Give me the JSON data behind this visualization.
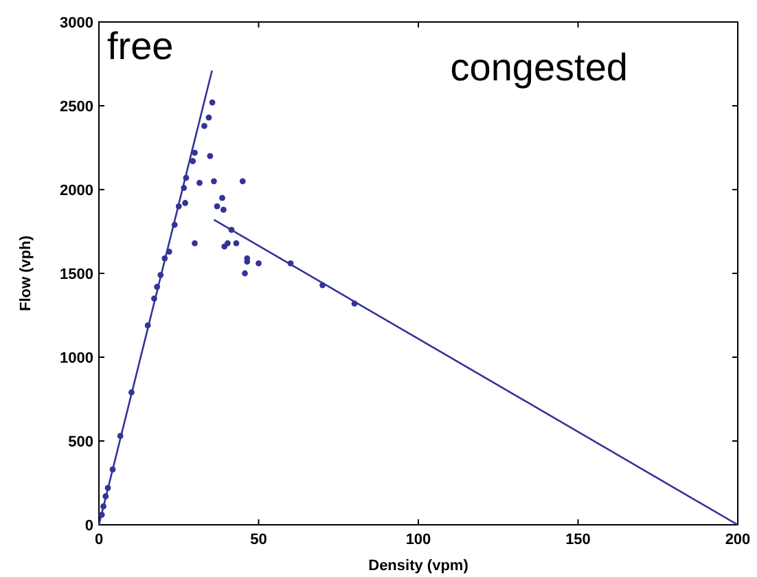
{
  "chart_data": {
    "type": "scatter",
    "xlabel": "Density (vpm)",
    "ylabel": "Flow (vph)",
    "xlim": [
      0,
      200
    ],
    "ylim": [
      0,
      3000
    ],
    "xticks": [
      0,
      50,
      100,
      150,
      200
    ],
    "yticks": [
      0,
      500,
      1000,
      1500,
      2000,
      2500,
      3000
    ],
    "grid": false,
    "marker": "circle",
    "annotations": [
      "free",
      "congested"
    ],
    "series": [
      {
        "color": "#333399",
        "x": [
          35.5,
          34.4,
          33,
          34.8,
          30,
          29.4,
          36,
          31.5,
          45,
          27.3,
          26.6,
          27,
          25,
          37,
          38.6,
          39,
          30,
          23.7,
          22,
          20.6,
          19.3,
          18.2,
          17.3,
          15.3,
          10.2,
          6.7,
          4.3,
          2.8,
          2.1,
          1.4,
          0.9,
          41.5,
          39.3,
          40.3,
          43,
          46.4,
          46.4,
          45.7,
          50,
          60,
          70,
          80
        ],
        "values": [
          2520,
          2430,
          2380,
          2200,
          2220,
          2170,
          2050,
          2040,
          2050,
          2070,
          2010,
          1920,
          1900,
          1900,
          1950,
          1880,
          1680,
          1790,
          1630,
          1590,
          1490,
          1420,
          1350,
          1190,
          790,
          530,
          330,
          220,
          170,
          110,
          60,
          1760,
          1660,
          1680,
          1680,
          1590,
          1570,
          1500,
          1560,
          1560,
          1430,
          1320
        ]
      },
      {
        "type": "line",
        "color": "#333399",
        "marker": "none",
        "x": [
          0,
          35.4
        ],
        "values": [
          0,
          2710
        ]
      },
      {
        "type": "line",
        "color": "#333399",
        "marker": "none",
        "x": [
          36,
          200
        ],
        "values": [
          1820,
          0
        ]
      }
    ]
  }
}
